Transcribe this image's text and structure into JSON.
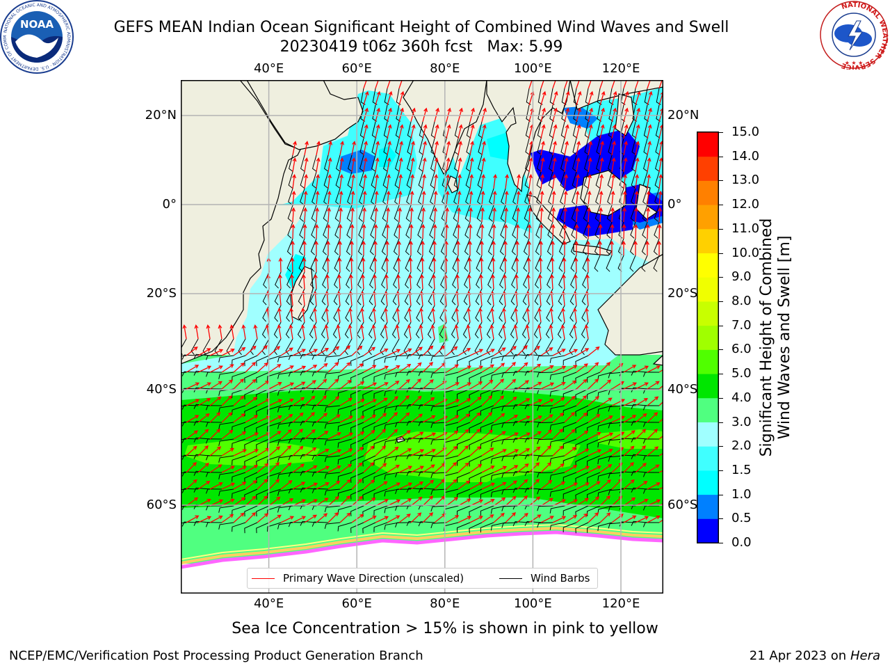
{
  "header": {
    "title": "GEFS MEAN Indian Ocean Significant Height of Combined Wind Waves and Swell",
    "subtitle": "20230419 t06z 360h fcst   Max: 5.99"
  },
  "logos": {
    "left": {
      "icon": "noaa-logo",
      "ring_text": "NATIONAL OCEANIC AND ATMOSPHERIC ADMINISTRATION · U.S. DEPARTMENT OF COMMERCE",
      "center_text": "NOAA"
    },
    "right": {
      "icon": "nws-logo",
      "ring_text": "NATIONAL WEATHER SERVICE"
    }
  },
  "map": {
    "lon_range": [
      20,
      130
    ],
    "lat_range": [
      -73,
      28
    ],
    "lon_ticks": [
      "40°E",
      "60°E",
      "80°E",
      "100°E",
      "120°E"
    ],
    "lat_ticks": [
      "20°N",
      "0°",
      "20°S",
      "40°S",
      "60°S"
    ],
    "grid": true,
    "colors": {
      "land": "#efefdf",
      "ice": "#ffffff",
      "grid": "#b4b4b4",
      "coast": "#000000",
      "arrow": "#ff0000",
      "barb": "#000000"
    }
  },
  "legend": {
    "placement": "lower-center",
    "items": [
      {
        "label": "Primary Wave Direction (unscaled)",
        "color": "#ff0000"
      },
      {
        "label": "Wind Barbs",
        "color": "#000000"
      }
    ]
  },
  "colorbar": {
    "label": "Significant Height of Combined Wind Waves and Swell [m]",
    "label_lines": [
      "Significant Height of Combined",
      "Wind Waves and Swell [m]"
    ],
    "ticks": [
      "0.0",
      "0.5",
      "1.0",
      "1.5",
      "2.0",
      "3.0",
      "4.0",
      "5.0",
      "6.0",
      "7.0",
      "8.0",
      "9.0",
      "10.0",
      "11.0",
      "12.0",
      "13.0",
      "14.0",
      "15.0"
    ],
    "colors": [
      "#0000ff",
      "#0080ff",
      "#00ffff",
      "#40ffff",
      "#a0ffff",
      "#50ff80",
      "#00e600",
      "#50ff00",
      "#a0ff00",
      "#c8ff00",
      "#f0ff00",
      "#ffff00",
      "#ffd000",
      "#ffa000",
      "#ff8000",
      "#ff4000",
      "#ff0000"
    ]
  },
  "caption": "Sea Ice Concentration > 15% is shown in pink to yellow",
  "footer": {
    "left": "NCEP/EMC/Verification Post Processing Product Generation Branch",
    "right_prefix": "21 Apr 2023 on ",
    "right_host": "Hera"
  }
}
